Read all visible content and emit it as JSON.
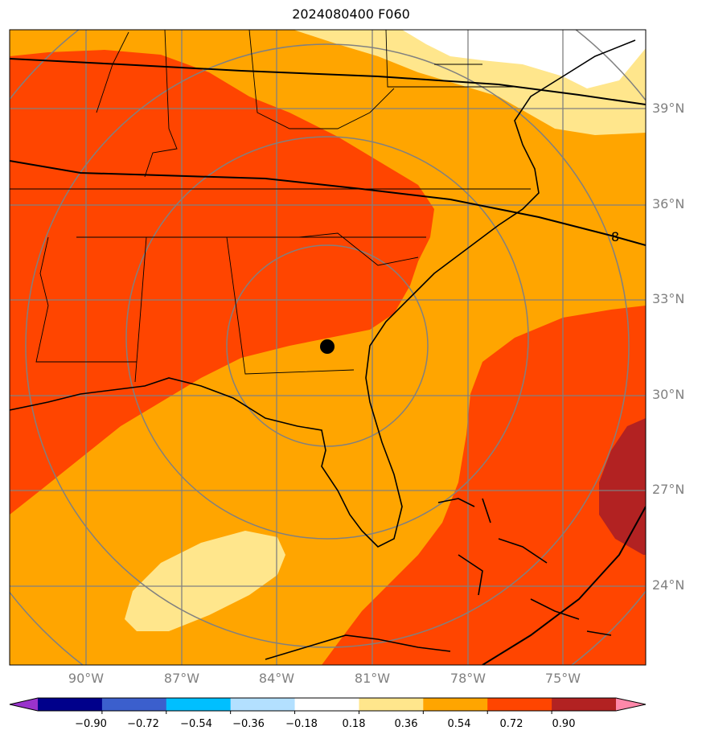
{
  "title": "2024080400 F060",
  "map": {
    "latitude_labels": [
      "39°N",
      "36°N",
      "33°N",
      "30°N",
      "27°N",
      "24°N"
    ],
    "longitude_labels": [
      "90°W",
      "87°W",
      "84°W",
      "81°W",
      "78°W",
      "75°W"
    ],
    "contour_label": "8",
    "marker": {
      "name": "center-point",
      "lat": 31.6,
      "lon": -82.9
    },
    "colors": {
      "dark_orange": "#ff4500",
      "orange": "#ffa500",
      "light_yellow": "#ffe68c",
      "white": "#ffffff",
      "dark_red": "#b22222",
      "grid": "#808080",
      "coast": "#000000"
    }
  },
  "colorbar": {
    "ticks": [
      "−0.90",
      "−0.72",
      "−0.54",
      "−0.36",
      "−0.18",
      "0.18",
      "0.36",
      "0.54",
      "0.72",
      "0.90"
    ],
    "colors": [
      "#9933cc",
      "#00008b",
      "#3b5fcd",
      "#00bfff",
      "#b3e0ff",
      "#ffffff",
      "#ffe68c",
      "#ffa500",
      "#ff4500",
      "#b22222",
      "#ff88aa"
    ]
  }
}
